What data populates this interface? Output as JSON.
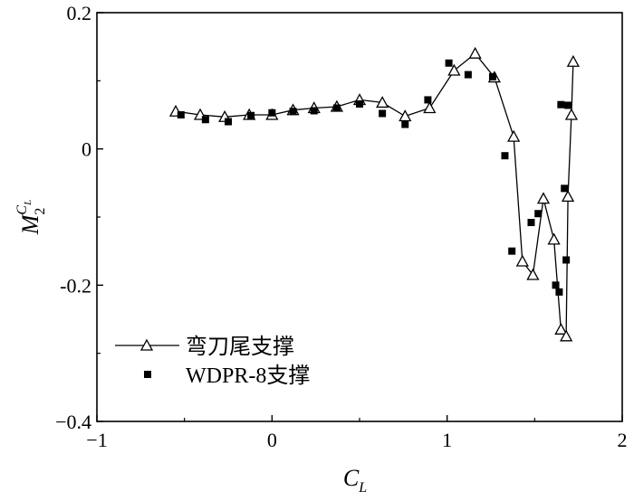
{
  "chart_data": {
    "type": "line",
    "title": "",
    "xlabel": {
      "main": "C",
      "sub": "L"
    },
    "ylabel": {
      "main": "M",
      "sub": "2",
      "sup_main": "C",
      "sup_sub": "L"
    },
    "xlim": [
      -1,
      2
    ],
    "ylim": [
      -0.4,
      0.2
    ],
    "xticks": [
      -1,
      0,
      1,
      2
    ],
    "xtick_labels": [
      "−1",
      "0",
      "1",
      "2"
    ],
    "yticks": [
      0.2,
      0,
      -0.2,
      -0.4
    ],
    "ytick_labels": [
      "0.2",
      "0",
      "-0.2",
      "−0.4"
    ],
    "grid": false,
    "legend_position": "bottom-left",
    "series": [
      {
        "name": "弯刀尾支撑",
        "marker": "open-triangle",
        "line": true,
        "x": [
          -0.55,
          -0.41,
          -0.27,
          -0.13,
          0.0,
          0.12,
          0.24,
          0.37,
          0.5,
          0.63,
          0.76,
          0.9,
          1.04,
          1.16,
          1.27,
          1.38,
          1.43,
          1.49,
          1.55,
          1.61,
          1.65,
          1.68,
          1.69,
          1.71,
          1.72
        ],
        "y": [
          0.055,
          0.05,
          0.047,
          0.05,
          0.05,
          0.057,
          0.06,
          0.062,
          0.072,
          0.068,
          0.048,
          0.06,
          0.115,
          0.14,
          0.105,
          0.018,
          -0.165,
          -0.185,
          -0.073,
          -0.133,
          -0.265,
          -0.275,
          -0.07,
          0.05,
          0.128
        ]
      },
      {
        "name": "WDPR-8支撑",
        "marker": "filled-square",
        "line": false,
        "x": [
          -0.52,
          -0.38,
          -0.25,
          -0.12,
          0.0,
          0.12,
          0.24,
          0.37,
          0.5,
          0.63,
          0.76,
          0.89,
          1.01,
          1.12,
          1.26,
          1.33,
          1.37,
          1.48,
          1.52,
          1.62,
          1.64,
          1.65,
          1.67,
          1.68,
          1.69
        ],
        "y": [
          0.05,
          0.043,
          0.04,
          0.049,
          0.053,
          0.055,
          0.056,
          0.06,
          0.066,
          0.052,
          0.036,
          0.072,
          0.126,
          0.109,
          0.106,
          -0.01,
          -0.15,
          -0.108,
          -0.095,
          -0.2,
          -0.21,
          0.065,
          -0.058,
          -0.163,
          0.064
        ]
      }
    ]
  }
}
